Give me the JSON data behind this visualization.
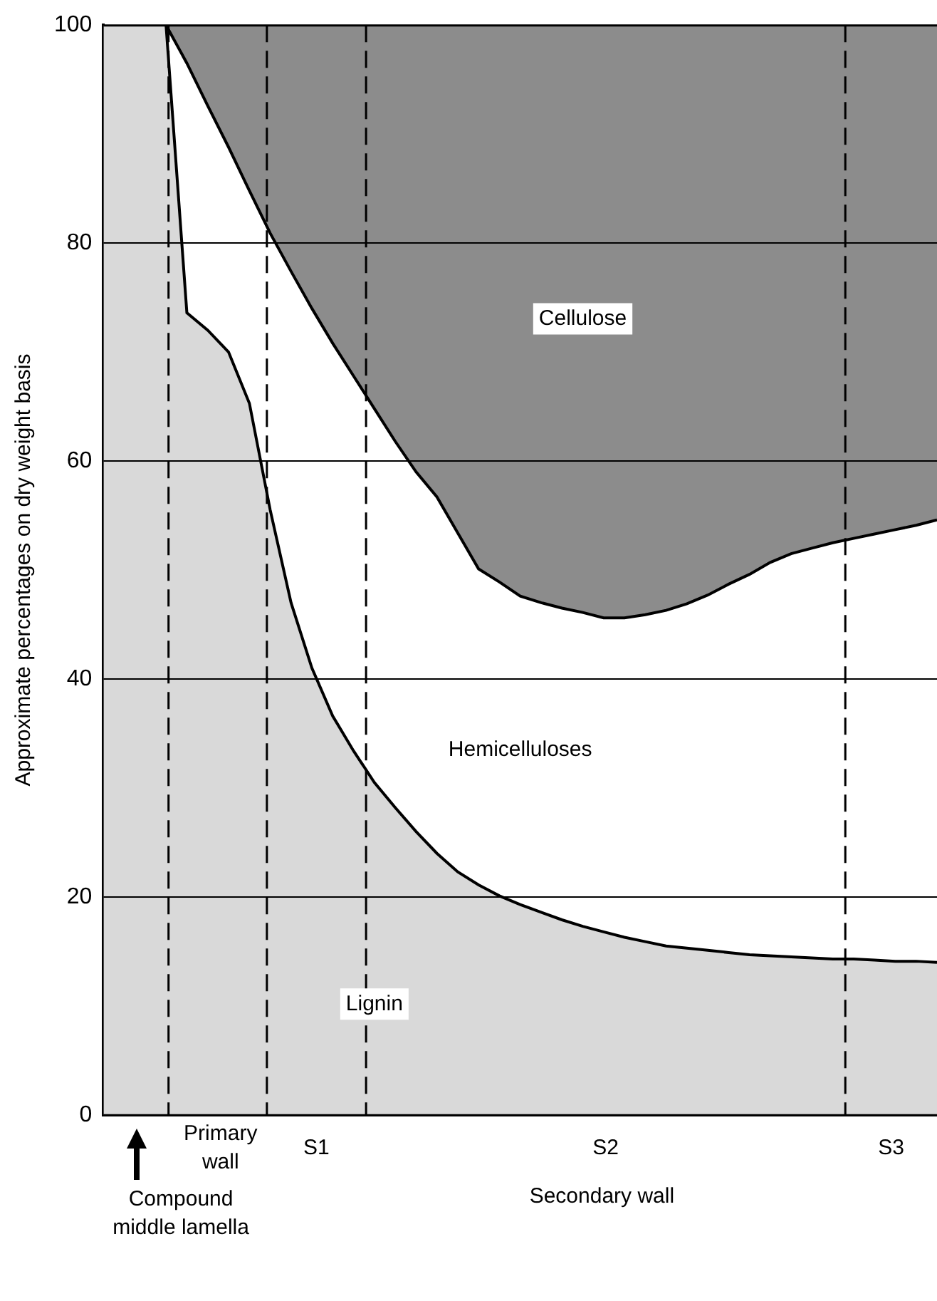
{
  "chart_data": {
    "type": "area",
    "stacked": true,
    "ylabel": "Approximate percentages on dry weight basis",
    "categories": [
      null,
      null,
      null,
      null,
      null,
      null,
      null,
      null,
      null,
      null,
      null,
      null,
      null,
      null,
      null,
      null,
      null,
      null,
      null,
      null,
      null,
      null,
      null,
      null,
      null,
      null,
      null,
      null,
      null,
      null,
      null,
      null,
      null,
      null,
      null,
      null,
      null,
      null,
      null,
      null,
      null
    ],
    "ylim": [
      0,
      100
    ],
    "yticks": [
      0,
      20,
      40,
      60,
      80,
      100
    ],
    "grid": "y",
    "tick_labels": "y",
    "series": [
      {
        "name": "Lignin",
        "color": "#d9d9d9",
        "values": [
          100,
          100,
          100,
          100,
          73.6,
          72,
          70,
          65.3,
          55.5,
          47,
          41,
          36.6,
          33.4,
          30.5,
          28.2,
          26,
          24,
          22.3,
          21.1,
          20.1,
          19.3,
          18.6,
          17.9,
          17.3,
          16.8,
          16.3,
          15.9,
          15.5,
          15.3,
          15.1,
          14.9,
          14.7,
          14.6,
          14.5,
          14.4,
          14.3,
          14.3,
          14.2,
          14.1,
          14.1,
          14
        ]
      },
      {
        "name": "Hemicelluloses",
        "color": "#ffffff",
        "values": [
          0,
          0,
          0,
          0,
          22.9,
          20.6,
          18.8,
          19.5,
          25.4,
          30.4,
          33,
          34.2,
          34.4,
          34.3,
          33.6,
          33,
          32.7,
          31.1,
          29,
          28.8,
          28.3,
          28.4,
          28.6,
          28.8,
          28.8,
          29.3,
          30,
          30.8,
          31.6,
          32.6,
          33.8,
          34.9,
          36.1,
          37,
          37.6,
          38.2,
          38.6,
          39.1,
          39.6,
          40,
          40.6
        ]
      },
      {
        "name": "Cellulose",
        "color": "#8c8c8c",
        "values": [
          0,
          0,
          0,
          0,
          3.5,
          7.4,
          11.2,
          15.2,
          19.1,
          22.6,
          26,
          29.2,
          32.2,
          35.2,
          38.2,
          41,
          43.3,
          46.6,
          49.9,
          51.1,
          52.4,
          53,
          53.5,
          53.9,
          54.4,
          54.4,
          54.1,
          53.7,
          53.1,
          52.3,
          51.3,
          50.4,
          49.3,
          48.5,
          48,
          47.5,
          47.1,
          46.7,
          46.3,
          45.9,
          45.4
        ]
      }
    ],
    "annotations": [
      "Compound middle lamella",
      "Primary wall",
      "S1",
      "S2",
      "S3",
      "Secondary wall"
    ],
    "legend": false
  }
}
